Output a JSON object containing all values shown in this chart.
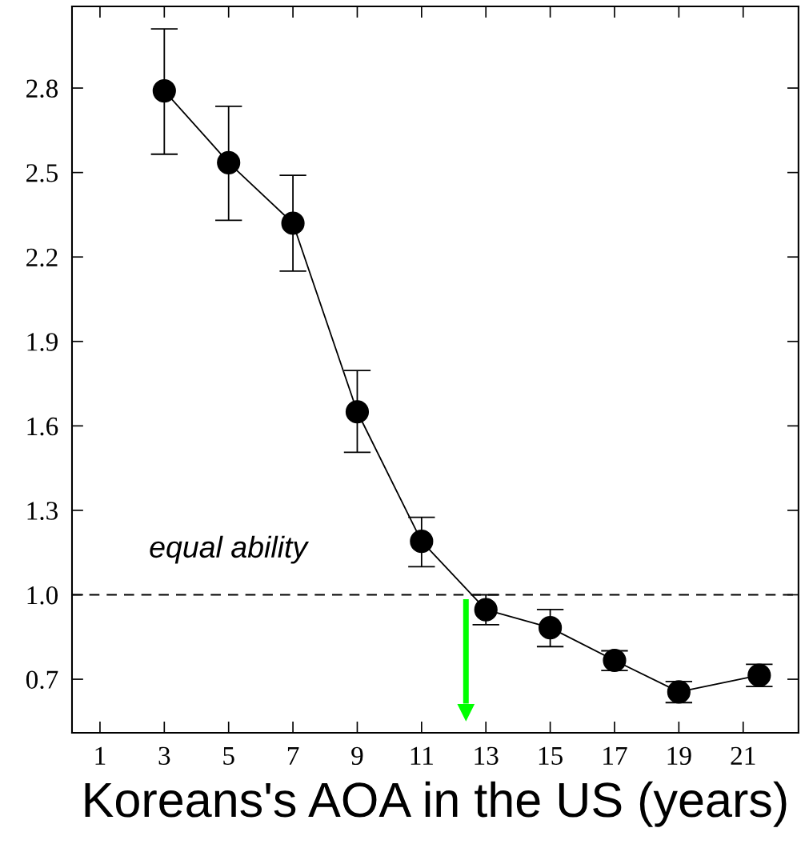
{
  "chart_data": {
    "type": "line",
    "xlabel": "Koreans's AOA in the US (years)",
    "x": [
      3,
      5,
      7,
      9,
      11,
      13,
      15,
      17,
      19,
      21.5
    ],
    "series": [
      {
        "color": "#000000",
        "values": [
          2.79,
          2.535,
          2.32,
          1.65,
          1.19,
          0.947,
          0.883,
          0.767,
          0.655,
          0.714
        ],
        "errors": [
          [
            2.565,
            3.01
          ],
          [
            2.33,
            2.735
          ],
          [
            2.15,
            2.49
          ],
          [
            1.506,
            1.797
          ],
          [
            1.1,
            1.275
          ],
          [
            0.894,
            1.0
          ],
          [
            0.816,
            0.948
          ],
          [
            0.731,
            0.801
          ],
          [
            0.617,
            0.692
          ],
          [
            0.674,
            0.753
          ]
        ]
      }
    ],
    "marker": "circle",
    "line_style": "solid",
    "xlim": [
      0.13,
      22.72
    ],
    "xticks": [
      1,
      3,
      5,
      7,
      9,
      11,
      13,
      15,
      17,
      19,
      21
    ],
    "ylim": [
      0.51,
      3.09
    ],
    "yticks": [
      0.7,
      {
        "value": 1.0,
        "label": "1.0"
      },
      1.3,
      1.6,
      1.9,
      2.2,
      2.5,
      2.8
    ],
    "ref_lines": [
      {
        "axis": "y",
        "value": 1.0,
        "color": "#000000",
        "line_style": "dashed"
      },
      {
        "axis": "x",
        "value": 12.38,
        "color": "#00ff00",
        "line_style": "solid"
      }
    ],
    "annotations": [
      "equal ability"
    ],
    "grid": false,
    "legend": false
  }
}
